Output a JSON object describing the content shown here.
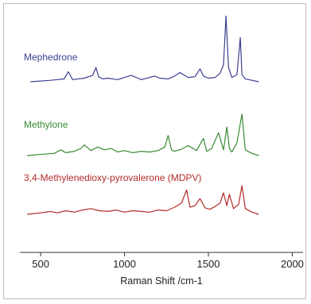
{
  "chart_data": {
    "type": "line",
    "title": "",
    "xlabel": "Raman Shift /cm-1",
    "ylabel": "",
    "xlim": [
      400,
      2050
    ],
    "xticks": [
      500,
      1000,
      1500,
      2000
    ],
    "xtick_labels": [
      "500",
      "1000",
      "1500",
      "2000"
    ],
    "grid": false,
    "series": [
      {
        "name": "Mephedrone",
        "color": "#3c3f8f",
        "baseline": 0,
        "x": [
          440,
          560,
          640,
          665,
          690,
          760,
          810,
          830,
          845,
          870,
          900,
          960,
          1000,
          1040,
          1080,
          1100,
          1150,
          1180,
          1210,
          1260,
          1300,
          1330,
          1380,
          1420,
          1450,
          1470,
          1500,
          1540,
          1570,
          1590,
          1605,
          1620,
          1640,
          1670,
          1690,
          1700,
          1720,
          1760,
          1800
        ],
        "y": [
          0,
          2,
          4,
          14,
          3,
          5,
          9,
          20,
          7,
          4,
          5,
          3,
          6,
          9,
          5,
          3,
          6,
          8,
          5,
          4,
          8,
          13,
          6,
          7,
          18,
          8,
          5,
          6,
          12,
          24,
          92,
          20,
          6,
          10,
          62,
          10,
          4,
          2,
          0
        ]
      },
      {
        "name": "Methylone",
        "color": "#3a8a34",
        "baseline": 0,
        "x": [
          420,
          520,
          580,
          620,
          650,
          700,
          740,
          760,
          800,
          840,
          880,
          920,
          960,
          1000,
          1050,
          1100,
          1150,
          1200,
          1240,
          1260,
          1280,
          1300,
          1340,
          1380,
          1430,
          1470,
          1490,
          1520,
          1560,
          1590,
          1610,
          1625,
          1640,
          1670,
          1700,
          1720,
          1760,
          1800
        ],
        "y": [
          0,
          2,
          3,
          8,
          4,
          6,
          10,
          15,
          7,
          12,
          8,
          10,
          5,
          7,
          4,
          6,
          5,
          7,
          12,
          28,
          8,
          6,
          9,
          14,
          7,
          24,
          6,
          10,
          32,
          8,
          40,
          10,
          5,
          18,
          58,
          8,
          3,
          0
        ]
      },
      {
        "name": "3,4-Methylenedioxy-pyrovalerone (MDPV)",
        "color": "#b32a2a",
        "baseline": 0,
        "x": [
          420,
          500,
          560,
          600,
          650,
          700,
          750,
          800,
          850,
          900,
          950,
          1000,
          1050,
          1100,
          1150,
          1200,
          1250,
          1300,
          1340,
          1370,
          1390,
          1420,
          1450,
          1480,
          1510,
          1540,
          1570,
          1590,
          1610,
          1625,
          1650,
          1680,
          1700,
          1720,
          1760,
          1800
        ],
        "y": [
          0,
          2,
          4,
          2,
          5,
          3,
          6,
          8,
          5,
          4,
          6,
          3,
          5,
          4,
          3,
          6,
          5,
          10,
          16,
          34,
          10,
          12,
          22,
          9,
          7,
          11,
          16,
          30,
          12,
          28,
          8,
          14,
          40,
          8,
          3,
          0
        ]
      }
    ]
  }
}
